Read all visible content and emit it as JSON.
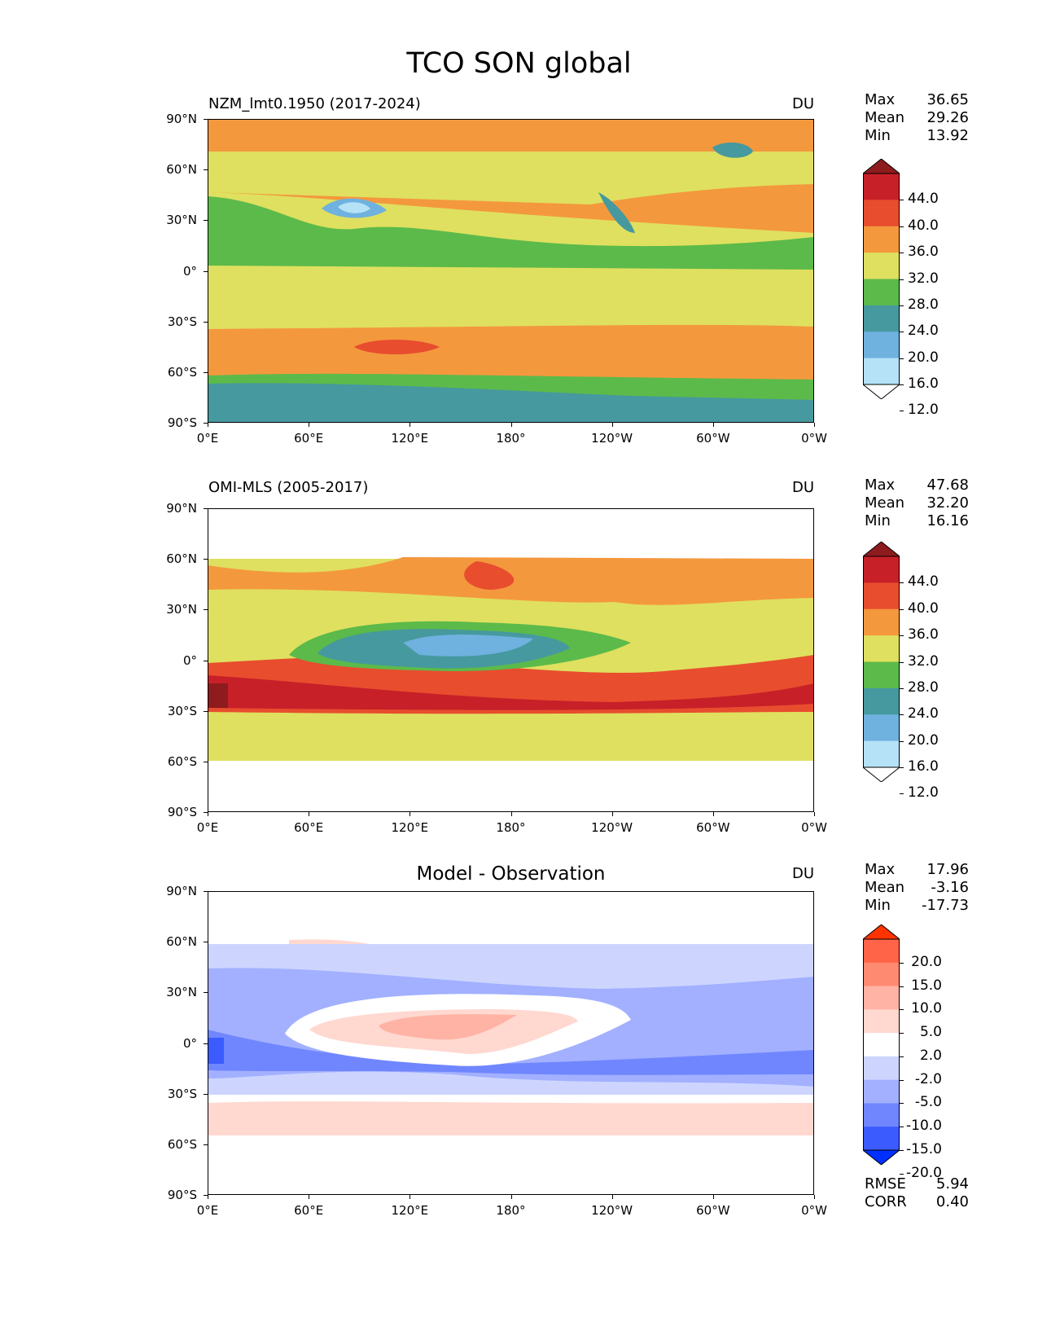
{
  "title": "TCO SON global",
  "lat_labels": [
    "90°N",
    "60°N",
    "30°N",
    "0°",
    "30°S",
    "60°S",
    "90°S"
  ],
  "lon_labels": [
    "0°E",
    "60°E",
    "120°E",
    "180°",
    "120°W",
    "60°W",
    "0°W"
  ],
  "panels": [
    {
      "title": "NZM_lmt0.1950 (2017-2024)",
      "units": "DU",
      "stats": [
        {
          "name": "Max",
          "value": "36.65"
        },
        {
          "name": "Mean",
          "value": "29.26"
        },
        {
          "name": "Min",
          "value": "13.92"
        }
      ],
      "colorbar": {
        "levels": [
          "44.0",
          "40.0",
          "36.0",
          "32.0",
          "28.0",
          "24.0",
          "20.0",
          "16.0",
          "12.0"
        ],
        "colors": [
          "#8e1b1d",
          "#c72028",
          "#e84d2e",
          "#f4983e",
          "#dfe05f",
          "#5cba4a",
          "#46999e",
          "#6fb1df",
          "#b5e2f7",
          "#ffffff"
        ]
      }
    },
    {
      "title": "OMI-MLS (2005-2017)",
      "units": "DU",
      "stats": [
        {
          "name": "Max",
          "value": "47.68"
        },
        {
          "name": "Mean",
          "value": "32.20"
        },
        {
          "name": "Min",
          "value": "16.16"
        }
      ],
      "colorbar": {
        "levels": [
          "44.0",
          "40.0",
          "36.0",
          "32.0",
          "28.0",
          "24.0",
          "20.0",
          "16.0",
          "12.0"
        ],
        "colors": [
          "#8e1b1d",
          "#c72028",
          "#e84d2e",
          "#f4983e",
          "#dfe05f",
          "#5cba4a",
          "#46999e",
          "#6fb1df",
          "#b5e2f7",
          "#ffffff"
        ]
      }
    },
    {
      "title": "Model - Observation",
      "units": "DU",
      "stats": [
        {
          "name": "Max",
          "value": "17.96"
        },
        {
          "name": "Mean",
          "value": "-3.16"
        },
        {
          "name": "Min",
          "value": "-17.73"
        }
      ],
      "colorbar": {
        "levels": [
          "20.0",
          "15.0",
          "10.0",
          "5.0",
          "2.0",
          "-2.0",
          "-5.0",
          "-10.0",
          "-15.0",
          "-20.0"
        ],
        "colors": [
          "#ff3300",
          "#ff6448",
          "#ff8a72",
          "#ffb3a4",
          "#ffd8d0",
          "#ffffff",
          "#cdd5ff",
          "#a2b0ff",
          "#7086ff",
          "#3c5bff",
          "#0030ff"
        ]
      },
      "metrics": [
        {
          "name": "RMSE",
          "value": "5.94"
        },
        {
          "name": "CORR",
          "value": "0.40"
        }
      ]
    }
  ],
  "colors": {
    "p1": {
      "c44": "#8e1b1d",
      "c40": "#c72028",
      "c36": "#e84d2e",
      "c32": "#f4983e",
      "c28": "#dfe05f",
      "c24": "#5cba4a",
      "c20": "#46999e",
      "c16": "#6fb1df",
      "c12": "#b5e2f7"
    },
    "diff": {
      "p15": "#ff6448",
      "p10": "#ff8a72",
      "p5": "#ffb3a4",
      "p2": "#ffd8d0",
      "m2": "#cdd5ff",
      "m5": "#a2b0ff",
      "m10": "#7086ff",
      "m15": "#3c5bff"
    }
  }
}
